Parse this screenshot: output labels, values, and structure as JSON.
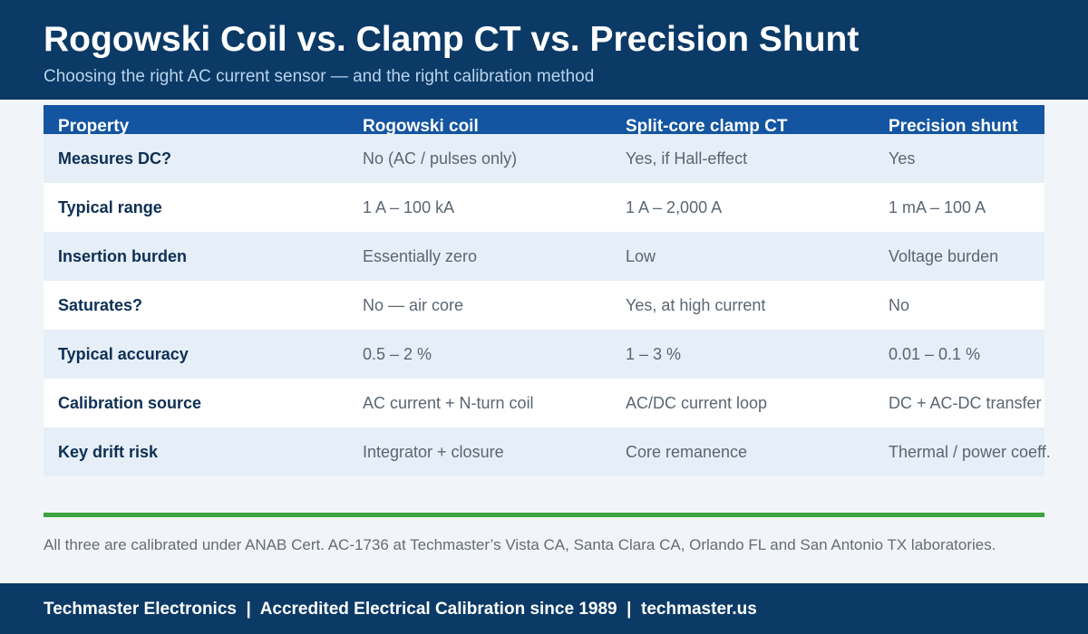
{
  "header": {
    "title": "Rogowski Coil vs. Clamp CT vs. Precision Shunt",
    "subtitle": "Choosing the right AC current sensor — and the right calibration method"
  },
  "table": {
    "columns": [
      "Property",
      "Rogowski coil",
      "Split-core clamp CT",
      "Precision shunt"
    ],
    "rows": [
      [
        "Measures DC?",
        "No (AC / pulses only)",
        "Yes, if Hall-effect",
        "Yes"
      ],
      [
        "Typical range",
        "1 A – 100 kA",
        "1 A – 2,000 A",
        "1 mA – 100 A"
      ],
      [
        "Insertion burden",
        "Essentially zero",
        "Low",
        "Voltage burden"
      ],
      [
        "Saturates?",
        "No — air core",
        "Yes, at high current",
        "No"
      ],
      [
        "Typical accuracy",
        "0.5 – 2 %",
        "1 – 3 %",
        "0.01 – 0.1 %"
      ],
      [
        "Calibration source",
        "AC current + N-turn coil",
        "AC/DC current loop",
        "DC + AC-DC transfer"
      ],
      [
        "Key drift risk",
        "Integrator + closure",
        "Core remanence",
        "Thermal / power coeff."
      ]
    ]
  },
  "note": "All three are calibrated under ANAB Cert. AC-1736 at Techmaster’s Vista CA, Santa Clara CA, Orlando FL and San Antonio TX laboratories.",
  "footer": {
    "text": "Techmaster Electronics  |  Accredited Electrical Calibration since 1989  |  techmaster.us"
  },
  "colors": {
    "header_bg": "#0b3a66",
    "table_head_bg": "#1355a1",
    "row_alt_bg": "#e6eef7",
    "accent_green": "#3da33d",
    "property_text": "#0d2f54",
    "value_text": "#5b6672"
  }
}
